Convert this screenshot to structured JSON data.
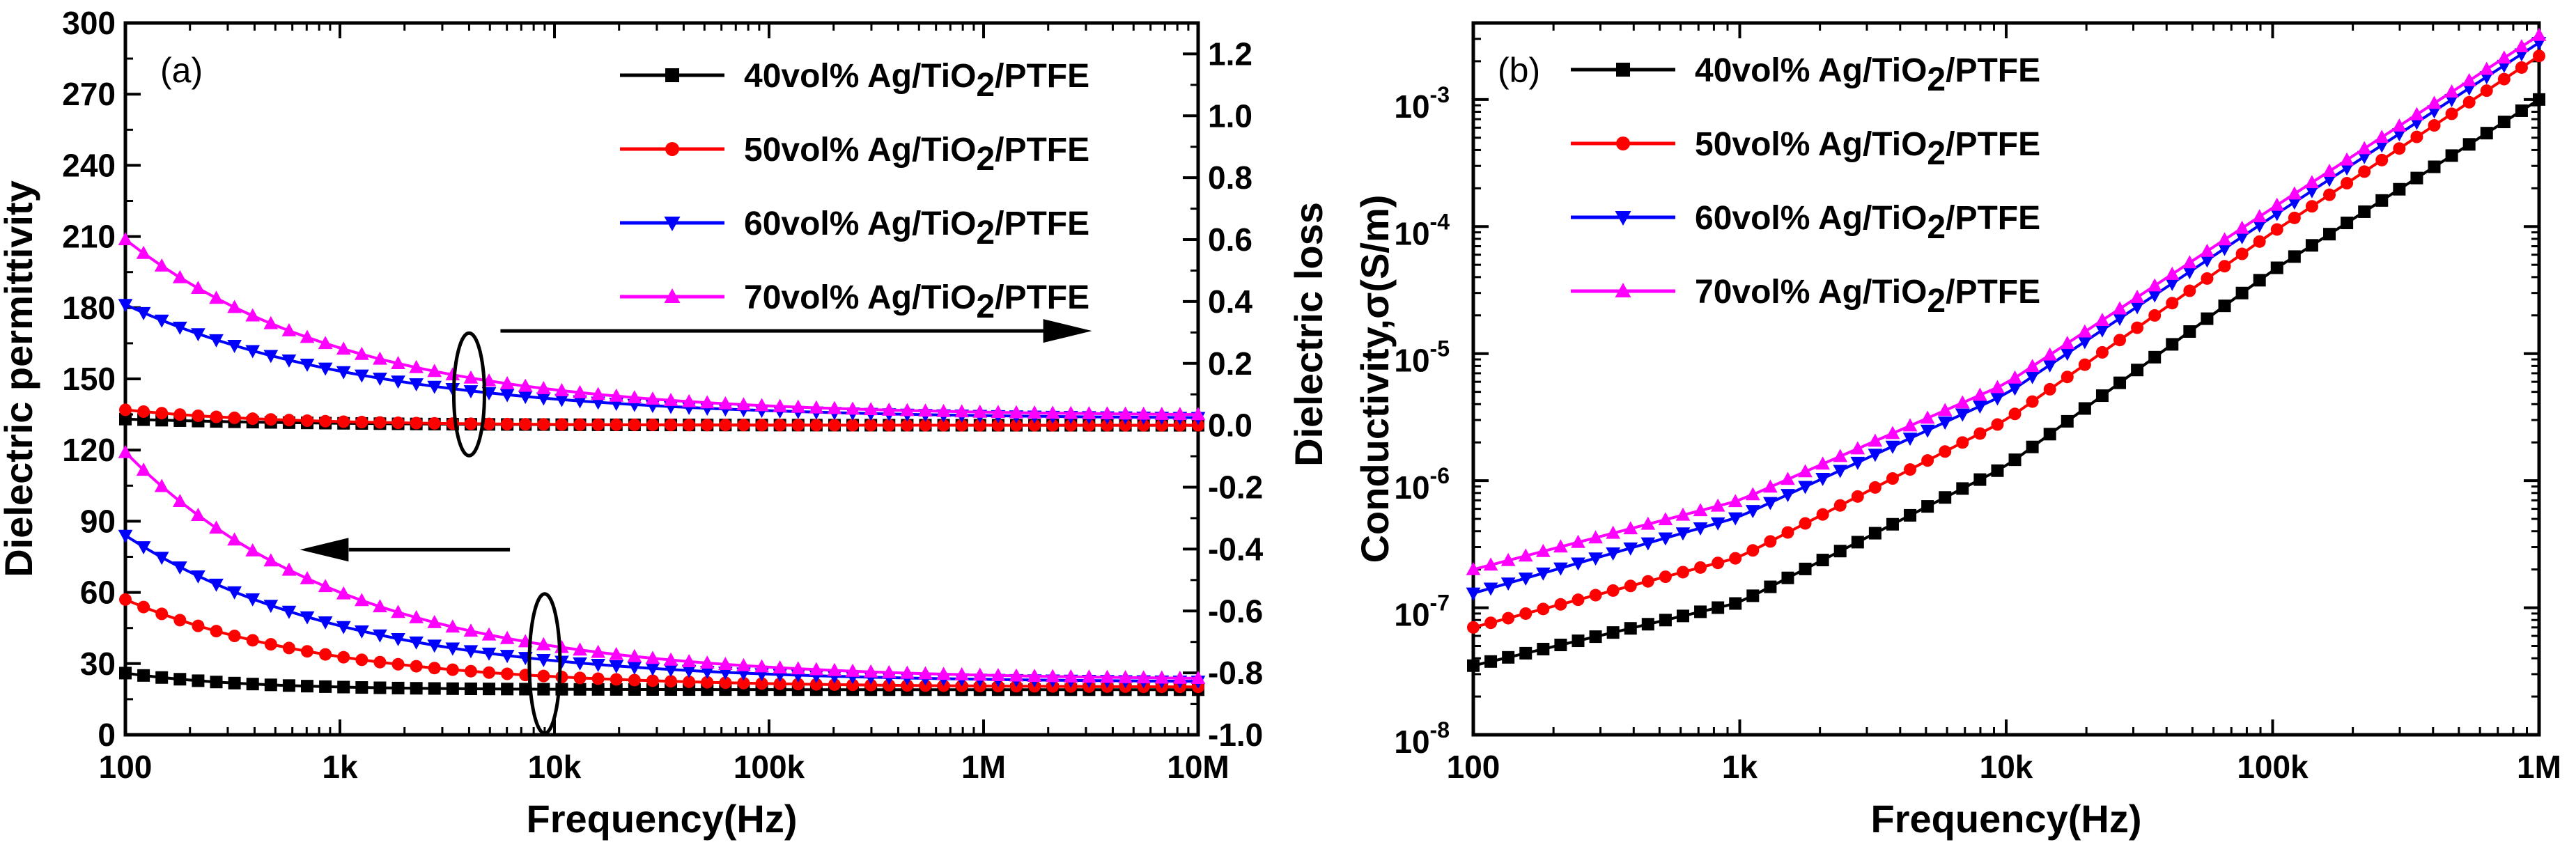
{
  "chart_data": [
    {
      "type": "line",
      "panel_label": "(a)",
      "xlabel": "Frequency(Hz)",
      "ylabel_left": "Dielectric permittivity",
      "ylabel_right": "Dielectric loss",
      "xscale": "log",
      "xlim": [
        100,
        10000000
      ],
      "x_ticks": [
        {
          "value": 100,
          "label": "100"
        },
        {
          "value": 1000,
          "label": "1k"
        },
        {
          "value": 10000,
          "label": "10k"
        },
        {
          "value": 100000,
          "label": "100k"
        },
        {
          "value": 1000000,
          "label": "1M"
        },
        {
          "value": 10000000,
          "label": "10M"
        }
      ],
      "ylim_left": [
        0,
        300
      ],
      "y_ticks_left": [
        "0",
        "30",
        "60",
        "90",
        "120",
        "150",
        "180",
        "210",
        "240",
        "270",
        "300"
      ],
      "ylim_right": [
        -1.0,
        1.3
      ],
      "y_ticks_right": [
        "-1.0",
        "-0.8",
        "-0.6",
        "-0.4",
        "-0.2",
        "0.0",
        "0.2",
        "0.4",
        "0.6",
        "0.8",
        "1.0",
        "1.2"
      ],
      "legend_position": "top-right",
      "series": [
        {
          "name": "40vol% Ag/TiO2/PTFE",
          "legend_main": "40vol% Ag/TiO",
          "legend_sub": "2",
          "legend_tail": "/PTFE",
          "color": "#000000",
          "marker": "square",
          "permittivity": {
            "start": 26,
            "end": 19,
            "decades": 0.55
          },
          "loss": {
            "start": 0.02,
            "end": 0.0,
            "decades": 0.9
          }
        },
        {
          "name": "50vol% Ag/TiO2/PTFE",
          "legend_main": "50vol% Ag/TiO",
          "legend_sub": "2",
          "legend_tail": "/PTFE",
          "color": "#ff0000",
          "marker": "circle",
          "permittivity": {
            "start": 57,
            "end": 20,
            "decades": 0.95
          },
          "loss": {
            "start": 0.05,
            "end": 0.0,
            "decades": 0.7
          }
        },
        {
          "name": "60vol% Ag/TiO2/PTFE",
          "legend_main": "60vol% Ag/TiO",
          "legend_sub": "2",
          "legend_tail": "/PTFE",
          "color": "#0000ff",
          "marker": "triangle-down",
          "permittivity": {
            "start": 84,
            "end": 22,
            "decades": 1.05
          },
          "loss": {
            "start": 0.39,
            "end": 0.02,
            "decades": 1.15
          }
        },
        {
          "name": "70vol% Ag/TiO2/PTFE",
          "legend_main": "70vol% Ag/TiO",
          "legend_sub": "2",
          "legend_tail": "/PTFE",
          "color": "#ff00ff",
          "marker": "triangle-up",
          "permittivity": {
            "start": 119,
            "end": 23,
            "decades": 1.05
          },
          "loss": {
            "start": 0.6,
            "end": 0.03,
            "decades": 1.05
          }
        }
      ],
      "annotations": [
        {
          "type": "ellipse-with-arrow",
          "target": "loss curves",
          "at_frequency": 4000,
          "arrow": "right"
        },
        {
          "type": "ellipse-with-arrow",
          "target": "permittivity curves",
          "at_frequency": 9000,
          "arrow": "left"
        }
      ]
    },
    {
      "type": "line",
      "panel_label": "(b)",
      "xlabel": "Frequency(Hz)",
      "ylabel": "Conductivity,σ(S/m)",
      "xscale": "log",
      "yscale": "log",
      "xlim": [
        100,
        1000000
      ],
      "x_ticks": [
        {
          "value": 100,
          "label": "100"
        },
        {
          "value": 1000,
          "label": "1k"
        },
        {
          "value": 10000,
          "label": "10k"
        },
        {
          "value": 100000,
          "label": "100k"
        },
        {
          "value": 1000000,
          "label": "1M"
        }
      ],
      "ylim": [
        1e-08,
        0.004
      ],
      "y_ticks": [
        {
          "value": 1e-08,
          "base": "10",
          "exp": "-8"
        },
        {
          "value": 1e-07,
          "base": "10",
          "exp": "-7"
        },
        {
          "value": 1e-06,
          "base": "10",
          "exp": "-6"
        },
        {
          "value": 1e-05,
          "base": "10",
          "exp": "-5"
        },
        {
          "value": 0.0001,
          "base": "10",
          "exp": "-4"
        },
        {
          "value": 0.001,
          "base": "10",
          "exp": "-3"
        }
      ],
      "legend_position": "top-left",
      "series": [
        {
          "name": "40vol% Ag/TiO2/PTFE",
          "legend_main": "40vol% Ag/TiO",
          "legend_sub": "2",
          "legend_tail": "/PTFE",
          "color": "#000000",
          "marker": "square",
          "points": [
            [
              100,
              3.5e-08
            ],
            [
              1000,
              1.1e-07
            ],
            [
              10000,
              1.3e-06
            ],
            [
              100000,
              4.5e-05
            ],
            [
              1000000,
              0.001
            ]
          ]
        },
        {
          "name": "50vol% Ag/TiO2/PTFE",
          "legend_main": "50vol% Ag/TiO",
          "legend_sub": "2",
          "legend_tail": "/PTFE",
          "color": "#ff0000",
          "marker": "circle",
          "points": [
            [
              100,
              7e-08
            ],
            [
              1000,
              2.5e-07
            ],
            [
              10000,
              3e-06
            ],
            [
              100000,
              9e-05
            ],
            [
              1000000,
              0.0022
            ]
          ]
        },
        {
          "name": "60vol% Ag/TiO2/PTFE",
          "legend_main": "60vol% Ag/TiO",
          "legend_sub": "2",
          "legend_tail": "/PTFE",
          "color": "#0000ff",
          "marker": "triangle-down",
          "points": [
            [
              100,
              1.3e-07
            ],
            [
              1000,
              5.2e-07
            ],
            [
              10000,
              4.8e-06
            ],
            [
              100000,
              0.00012
            ],
            [
              1000000,
              0.0028
            ]
          ]
        },
        {
          "name": "70vol% Ag/TiO2/PTFE",
          "legend_main": "70vol% Ag/TiO",
          "legend_sub": "2",
          "legend_tail": "/PTFE",
          "color": "#ff00ff",
          "marker": "triangle-up",
          "points": [
            [
              100,
              2e-07
            ],
            [
              1000,
              7e-07
            ],
            [
              10000,
              5.8e-06
            ],
            [
              100000,
              0.00014
            ],
            [
              1000000,
              0.0032
            ]
          ]
        }
      ]
    }
  ]
}
